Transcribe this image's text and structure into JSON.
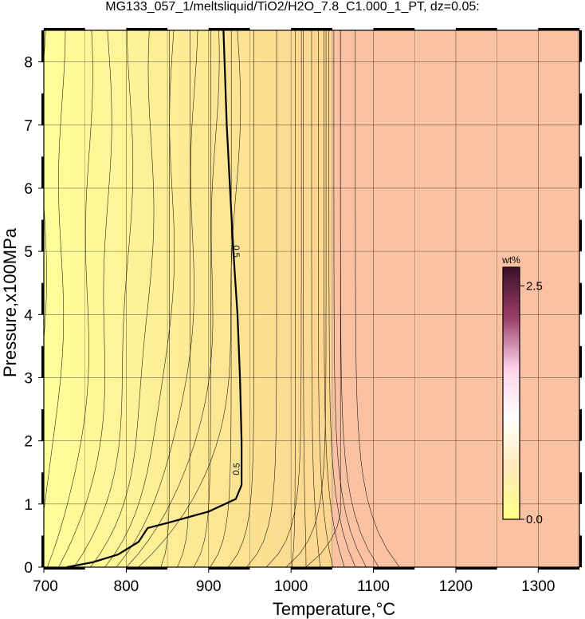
{
  "chart_data": {
    "type": "heatmap",
    "title": "MG133_057_1/meltsliquid/TiO2/H2O_7.8_C1.000_1_PT, dz=0.05:",
    "xlabel": "Temperature,°C",
    "ylabel": "Pressure,x100MPa",
    "xlim": [
      700,
      1350
    ],
    "ylim": [
      0,
      8.5
    ],
    "x_ticks": [
      700,
      800,
      900,
      1000,
      1100,
      1200,
      1300
    ],
    "y_ticks": [
      0,
      1,
      2,
      3,
      4,
      5,
      6,
      7,
      8
    ],
    "x_tick_labels": [
      "700",
      "800",
      "900",
      "1000",
      "1100",
      "1200",
      "1300"
    ],
    "y_tick_labels": [
      "0",
      "1",
      "2",
      "3",
      "4",
      "5",
      "6",
      "7",
      "8"
    ],
    "grid": true,
    "contour_interval": 0.05,
    "highlighted_contour": {
      "level": 0.5,
      "labels": [
        "0.5",
        "0.5"
      ],
      "points": [
        [
          728,
          0
        ],
        [
          760,
          0.08
        ],
        [
          790,
          0.2
        ],
        [
          815,
          0.4
        ],
        [
          826,
          0.62
        ],
        [
          850,
          0.7
        ],
        [
          900,
          0.88
        ],
        [
          933,
          1.08
        ],
        [
          940,
          1.3
        ],
        [
          940,
          2.0
        ],
        [
          938,
          3.0
        ],
        [
          935,
          4.0
        ],
        [
          930,
          5.0
        ],
        [
          926,
          6.0
        ],
        [
          922,
          7.0
        ],
        [
          918,
          8.5
        ]
      ]
    },
    "subsolidus_region": {
      "t_start": 1050,
      "t_end": 1350,
      "color": "#fac2a3"
    },
    "melt_field_colors": {
      "cool": "#ffff9a",
      "hot": "#fcd690"
    },
    "colorbar": {
      "unit": "wt%",
      "min": 0.0,
      "max": 2.7,
      "ticks": [
        0.0,
        2.5
      ],
      "tick_labels": [
        "0.0",
        "2.5"
      ],
      "colors": [
        "#ffff88",
        "#ffe9b8",
        "#ffffff",
        "#ffd0e8",
        "#9a3f66",
        "#3a0f2a"
      ]
    }
  }
}
